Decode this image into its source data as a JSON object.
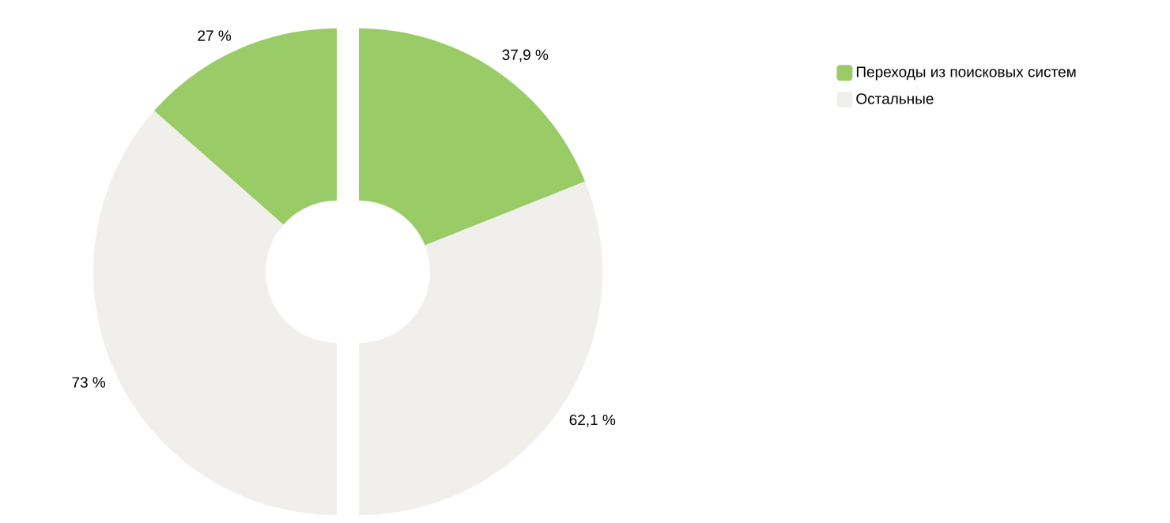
{
  "chart_data": [
    {
      "type": "donut",
      "categories": [
        "Переходы из поисковых систем",
        "Остальные"
      ],
      "colors": [
        "#99cc66",
        "#f0efeb"
      ],
      "values": [
        27,
        73
      ],
      "value_labels": [
        "27 %",
        "73 %"
      ],
      "legend": "top right"
    },
    {
      "type": "donut",
      "categories": [
        null,
        null
      ],
      "colors": [
        "#99cc66",
        "#f0efeb"
      ],
      "values": [
        37.9,
        62.1
      ],
      "value_labels": [
        "37,9 %",
        "62,1 %"
      ]
    }
  ]
}
